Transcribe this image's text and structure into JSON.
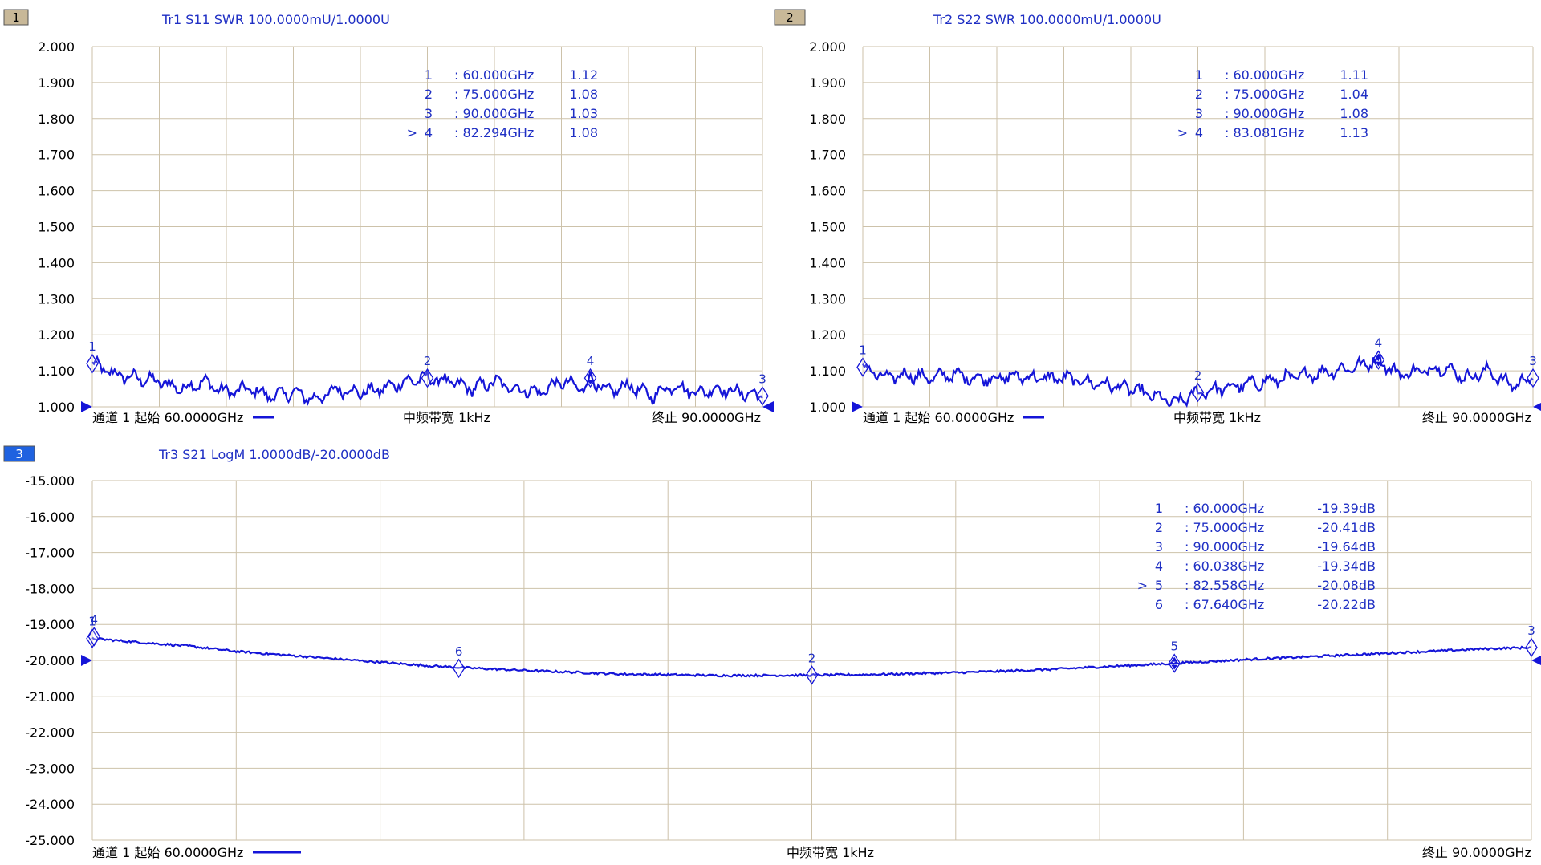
{
  "colors": {
    "trace": "#1515d8",
    "text": "#1f2fc4",
    "grid": "#cdc2aa",
    "axis_text": "#000000",
    "footer_text": "#000000",
    "badge_inactive": "#c8b898",
    "badge_active": "#1f62e0"
  },
  "chart_data": [
    {
      "type": "line",
      "window": "1",
      "title": "Tr1 S11 SWR 100.0000mU/1.0000U",
      "active": false,
      "xlim": [
        60,
        90
      ],
      "ylim": [
        1.0,
        2.0
      ],
      "x_unit": "GHz",
      "ytick_labels": [
        "2.000",
        "1.900",
        "1.800",
        "1.700",
        "1.600",
        "1.500",
        "1.400",
        "1.300",
        "1.200",
        "1.100",
        "1.000"
      ],
      "grid": true,
      "markers": [
        {
          "id": "1",
          "x": 60.0,
          "y": 1.12,
          "x_label": ": 60.000GHz",
          "y_label": "1.12",
          "active": false
        },
        {
          "id": "2",
          "x": 75.0,
          "y": 1.08,
          "x_label": ": 75.000GHz",
          "y_label": "1.08",
          "active": false
        },
        {
          "id": "3",
          "x": 90.0,
          "y": 1.03,
          "x_label": ": 90.000GHz",
          "y_label": "1.03",
          "active": false
        },
        {
          "id": "4",
          "x": 82.294,
          "y": 1.08,
          "x_label": ": 82.294GHz",
          "y_label": "1.08",
          "active": true
        }
      ],
      "series": [
        {
          "points": [
            [
              60.0,
              1.12
            ],
            [
              61.0,
              1.09
            ],
            [
              62.0,
              1.08
            ],
            [
              63.0,
              1.07
            ],
            [
              64.0,
              1.05
            ],
            [
              65.0,
              1.07
            ],
            [
              66.0,
              1.04
            ],
            [
              67.0,
              1.05
            ],
            [
              68.0,
              1.03
            ],
            [
              69.0,
              1.04
            ],
            [
              70.0,
              1.02
            ],
            [
              71.0,
              1.05
            ],
            [
              72.0,
              1.04
            ],
            [
              73.0,
              1.05
            ],
            [
              74.0,
              1.07
            ],
            [
              75.0,
              1.08
            ],
            [
              76.0,
              1.07
            ],
            [
              77.0,
              1.05
            ],
            [
              78.0,
              1.07
            ],
            [
              79.0,
              1.05
            ],
            [
              80.0,
              1.04
            ],
            [
              81.0,
              1.07
            ],
            [
              82.0,
              1.05
            ],
            [
              82.294,
              1.08
            ],
            [
              83.0,
              1.04
            ],
            [
              84.0,
              1.06
            ],
            [
              85.0,
              1.03
            ],
            [
              86.0,
              1.06
            ],
            [
              87.0,
              1.04
            ],
            [
              88.0,
              1.05
            ],
            [
              89.0,
              1.04
            ],
            [
              90.0,
              1.03
            ]
          ]
        }
      ],
      "footer": {
        "left": "通道 1 起始 60.0000GHz",
        "center": "中频带宽 1kHz",
        "right": "终止 90.0000GHz"
      }
    },
    {
      "type": "line",
      "window": "2",
      "title": "Tr2 S22 SWR 100.0000mU/1.0000U",
      "active": false,
      "xlim": [
        60,
        90
      ],
      "ylim": [
        1.0,
        2.0
      ],
      "x_unit": "GHz",
      "ytick_labels": [
        "2.000",
        "1.900",
        "1.800",
        "1.700",
        "1.600",
        "1.500",
        "1.400",
        "1.300",
        "1.200",
        "1.100",
        "1.000"
      ],
      "grid": true,
      "markers": [
        {
          "id": "1",
          "x": 60.0,
          "y": 1.11,
          "x_label": ": 60.000GHz",
          "y_label": "1.11",
          "active": false
        },
        {
          "id": "2",
          "x": 75.0,
          "y": 1.04,
          "x_label": ": 75.000GHz",
          "y_label": "1.04",
          "active": false
        },
        {
          "id": "3",
          "x": 90.0,
          "y": 1.08,
          "x_label": ": 90.000GHz",
          "y_label": "1.08",
          "active": false
        },
        {
          "id": "4",
          "x": 83.081,
          "y": 1.13,
          "x_label": ": 83.081GHz",
          "y_label": "1.13",
          "active": true
        }
      ],
      "series": [
        {
          "points": [
            [
              60.0,
              1.11
            ],
            [
              61.0,
              1.08
            ],
            [
              62.0,
              1.09
            ],
            [
              63.0,
              1.08
            ],
            [
              64.0,
              1.09
            ],
            [
              65.0,
              1.08
            ],
            [
              66.0,
              1.08
            ],
            [
              67.0,
              1.085
            ],
            [
              68.0,
              1.08
            ],
            [
              69.0,
              1.08
            ],
            [
              70.0,
              1.07
            ],
            [
              71.0,
              1.06
            ],
            [
              72.0,
              1.05
            ],
            [
              73.0,
              1.03
            ],
            [
              74.0,
              1.01
            ],
            [
              75.0,
              1.04
            ],
            [
              76.0,
              1.05
            ],
            [
              77.0,
              1.06
            ],
            [
              78.0,
              1.07
            ],
            [
              79.0,
              1.08
            ],
            [
              80.0,
              1.09
            ],
            [
              81.0,
              1.1
            ],
            [
              82.0,
              1.11
            ],
            [
              83.081,
              1.13
            ],
            [
              84.0,
              1.09
            ],
            [
              85.0,
              1.1
            ],
            [
              86.0,
              1.11
            ],
            [
              87.0,
              1.08
            ],
            [
              88.0,
              1.1
            ],
            [
              89.0,
              1.06
            ],
            [
              90.0,
              1.08
            ]
          ]
        }
      ],
      "footer": {
        "left": "通道 1 起始 60.0000GHz",
        "center": "中频带宽 1kHz",
        "right": "终止 90.0000GHz"
      }
    },
    {
      "type": "line",
      "window": "3",
      "title": "Tr3 S21 LogM 1.0000dB/-20.0000dB",
      "active": true,
      "xlim": [
        60,
        90
      ],
      "ylim": [
        -25.0,
        -15.0
      ],
      "x_unit": "GHz",
      "ytick_labels": [
        "-15.000",
        "-16.000",
        "-17.000",
        "-18.000",
        "-19.000",
        "-20.000",
        "-21.000",
        "-22.000",
        "-23.000",
        "-24.000",
        "-25.000"
      ],
      "grid": true,
      "markers": [
        {
          "id": "1",
          "x": 60.0,
          "y": -19.39,
          "x_label": ": 60.000GHz",
          "y_label": "-19.39dB",
          "active": false
        },
        {
          "id": "2",
          "x": 75.0,
          "y": -20.41,
          "x_label": ": 75.000GHz",
          "y_label": "-20.41dB",
          "active": false
        },
        {
          "id": "3",
          "x": 90.0,
          "y": -19.64,
          "x_label": ": 90.000GHz",
          "y_label": "-19.64dB",
          "active": false
        },
        {
          "id": "4",
          "x": 60.038,
          "y": -19.34,
          "x_label": ": 60.038GHz",
          "y_label": "-19.34dB",
          "active": false
        },
        {
          "id": "5",
          "x": 82.558,
          "y": -20.08,
          "x_label": ": 82.558GHz",
          "y_label": "-20.08dB",
          "active": true
        },
        {
          "id": "6",
          "x": 67.64,
          "y": -20.22,
          "x_label": ": 67.640GHz",
          "y_label": "-20.22dB",
          "active": false
        }
      ],
      "series": [
        {
          "points": [
            [
              60.0,
              -19.39
            ],
            [
              61.0,
              -19.5
            ],
            [
              62.0,
              -19.6
            ],
            [
              63.0,
              -19.75
            ],
            [
              64.0,
              -19.85
            ],
            [
              65.0,
              -19.95
            ],
            [
              66.0,
              -20.05
            ],
            [
              67.0,
              -20.15
            ],
            [
              68.0,
              -20.22
            ],
            [
              69.0,
              -20.28
            ],
            [
              70.0,
              -20.33
            ],
            [
              71.0,
              -20.38
            ],
            [
              72.0,
              -20.4
            ],
            [
              73.0,
              -20.42
            ],
            [
              74.0,
              -20.42
            ],
            [
              75.0,
              -20.41
            ],
            [
              76.0,
              -20.4
            ],
            [
              77.0,
              -20.37
            ],
            [
              78.0,
              -20.34
            ],
            [
              79.0,
              -20.3
            ],
            [
              80.0,
              -20.25
            ],
            [
              81.0,
              -20.18
            ],
            [
              82.0,
              -20.12
            ],
            [
              83.0,
              -20.05
            ],
            [
              84.0,
              -19.98
            ],
            [
              85.0,
              -19.92
            ],
            [
              86.0,
              -19.86
            ],
            [
              87.0,
              -19.8
            ],
            [
              88.0,
              -19.74
            ],
            [
              89.0,
              -19.68
            ],
            [
              90.0,
              -19.64
            ]
          ]
        }
      ],
      "footer": {
        "left": "通道 1 起始 60.0000GHz",
        "center": "中频带宽 1kHz",
        "right": "终止 90.0000GHz"
      }
    }
  ]
}
